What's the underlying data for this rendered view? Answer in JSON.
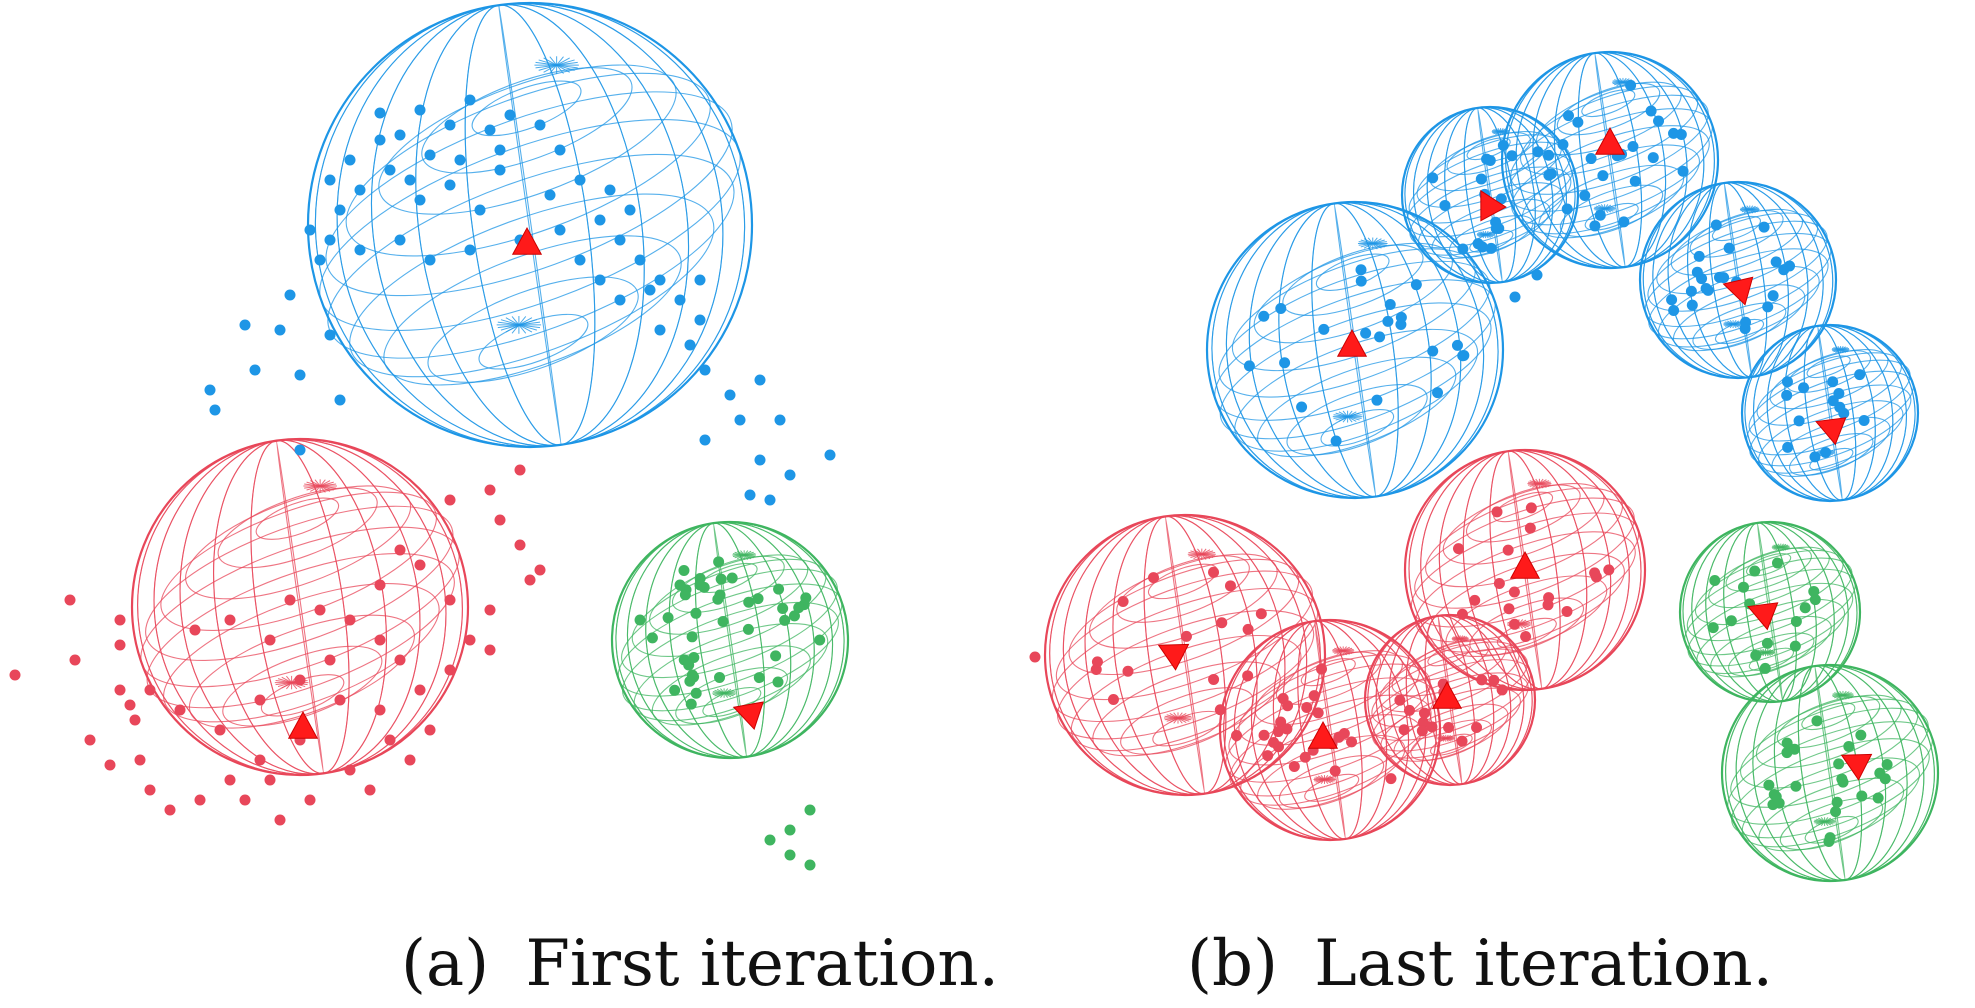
{
  "colors": {
    "blue": "#1e96e6",
    "red": "#e8475a",
    "green": "#3fb560",
    "centroid": "#ff1a1a"
  },
  "panels": [
    {
      "id": "a",
      "caption_label": "(a)",
      "caption_text": "First iteration."
    },
    {
      "id": "b",
      "caption_label": "(b)",
      "caption_text": "Last iteration."
    }
  ]
}
